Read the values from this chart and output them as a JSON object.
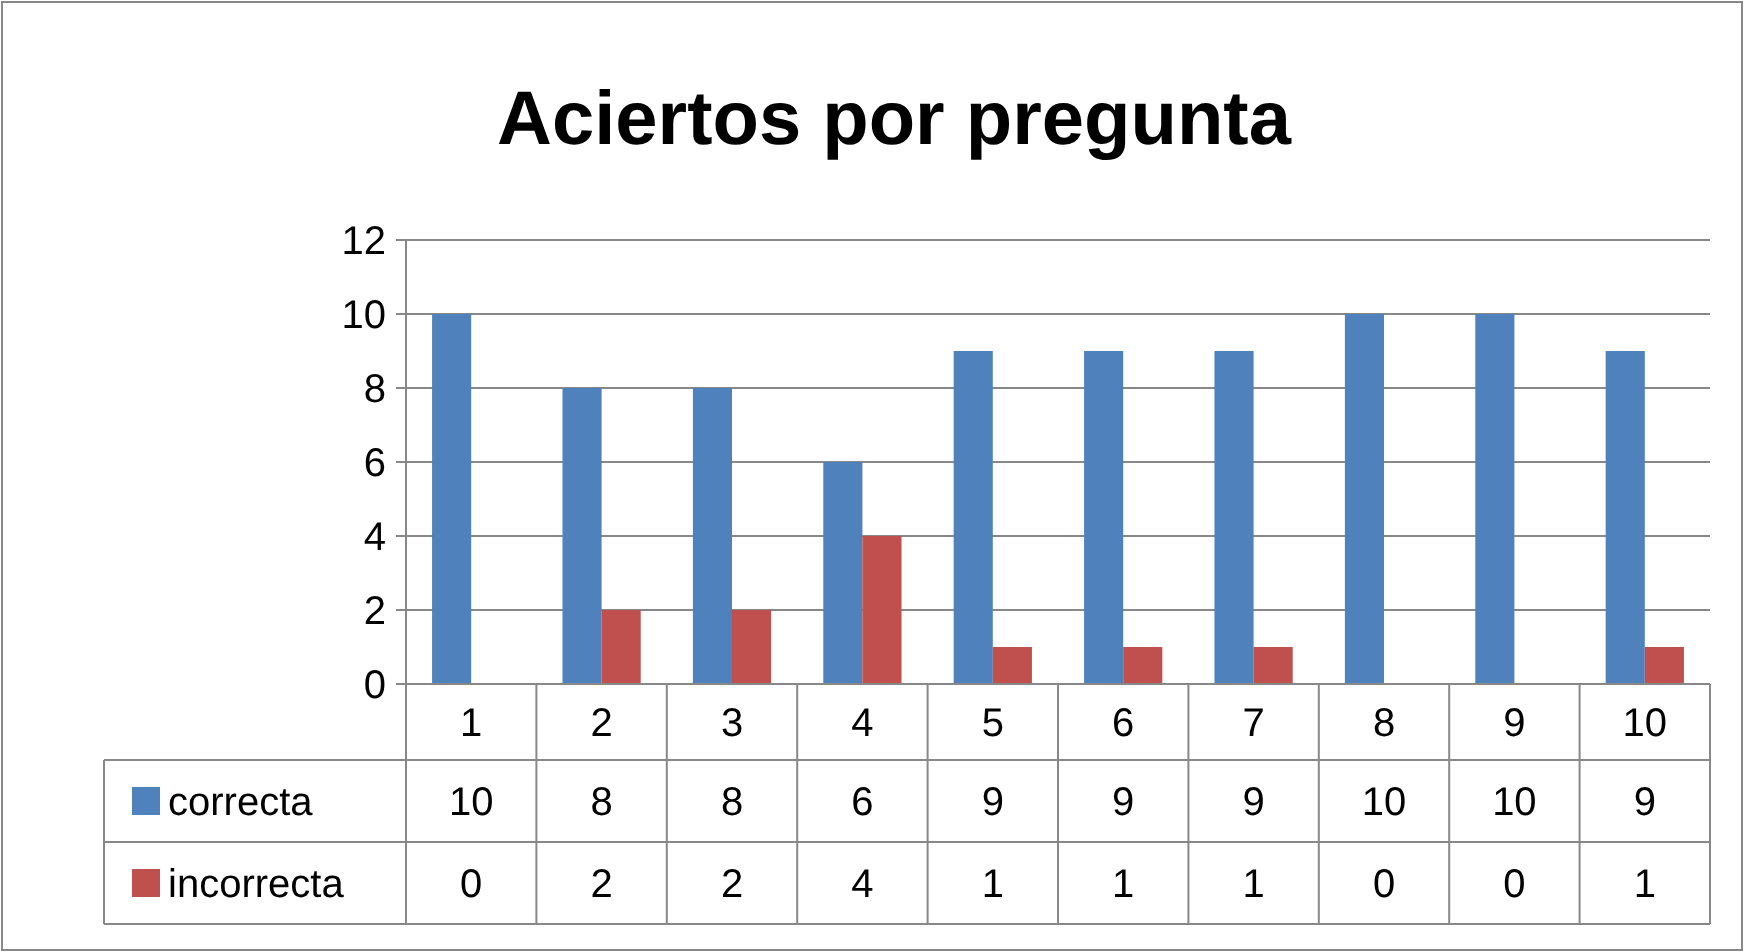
{
  "chart_data": {
    "type": "bar",
    "title": "Aciertos por pregunta",
    "categories": [
      "1",
      "2",
      "3",
      "4",
      "5",
      "6",
      "7",
      "8",
      "9",
      "10"
    ],
    "series": [
      {
        "name": "correcta",
        "color": "#4f81bd",
        "values": [
          10,
          8,
          8,
          6,
          9,
          9,
          9,
          10,
          10,
          9
        ]
      },
      {
        "name": "incorrecta",
        "color": "#c0504d",
        "values": [
          0,
          2,
          2,
          4,
          1,
          1,
          1,
          0,
          0,
          1
        ]
      }
    ],
    "ylim": [
      0,
      12
    ],
    "yticks": [
      0,
      2,
      4,
      6,
      8,
      10,
      12
    ],
    "grid": "y",
    "legend": "bottom",
    "data_labels": true
  }
}
